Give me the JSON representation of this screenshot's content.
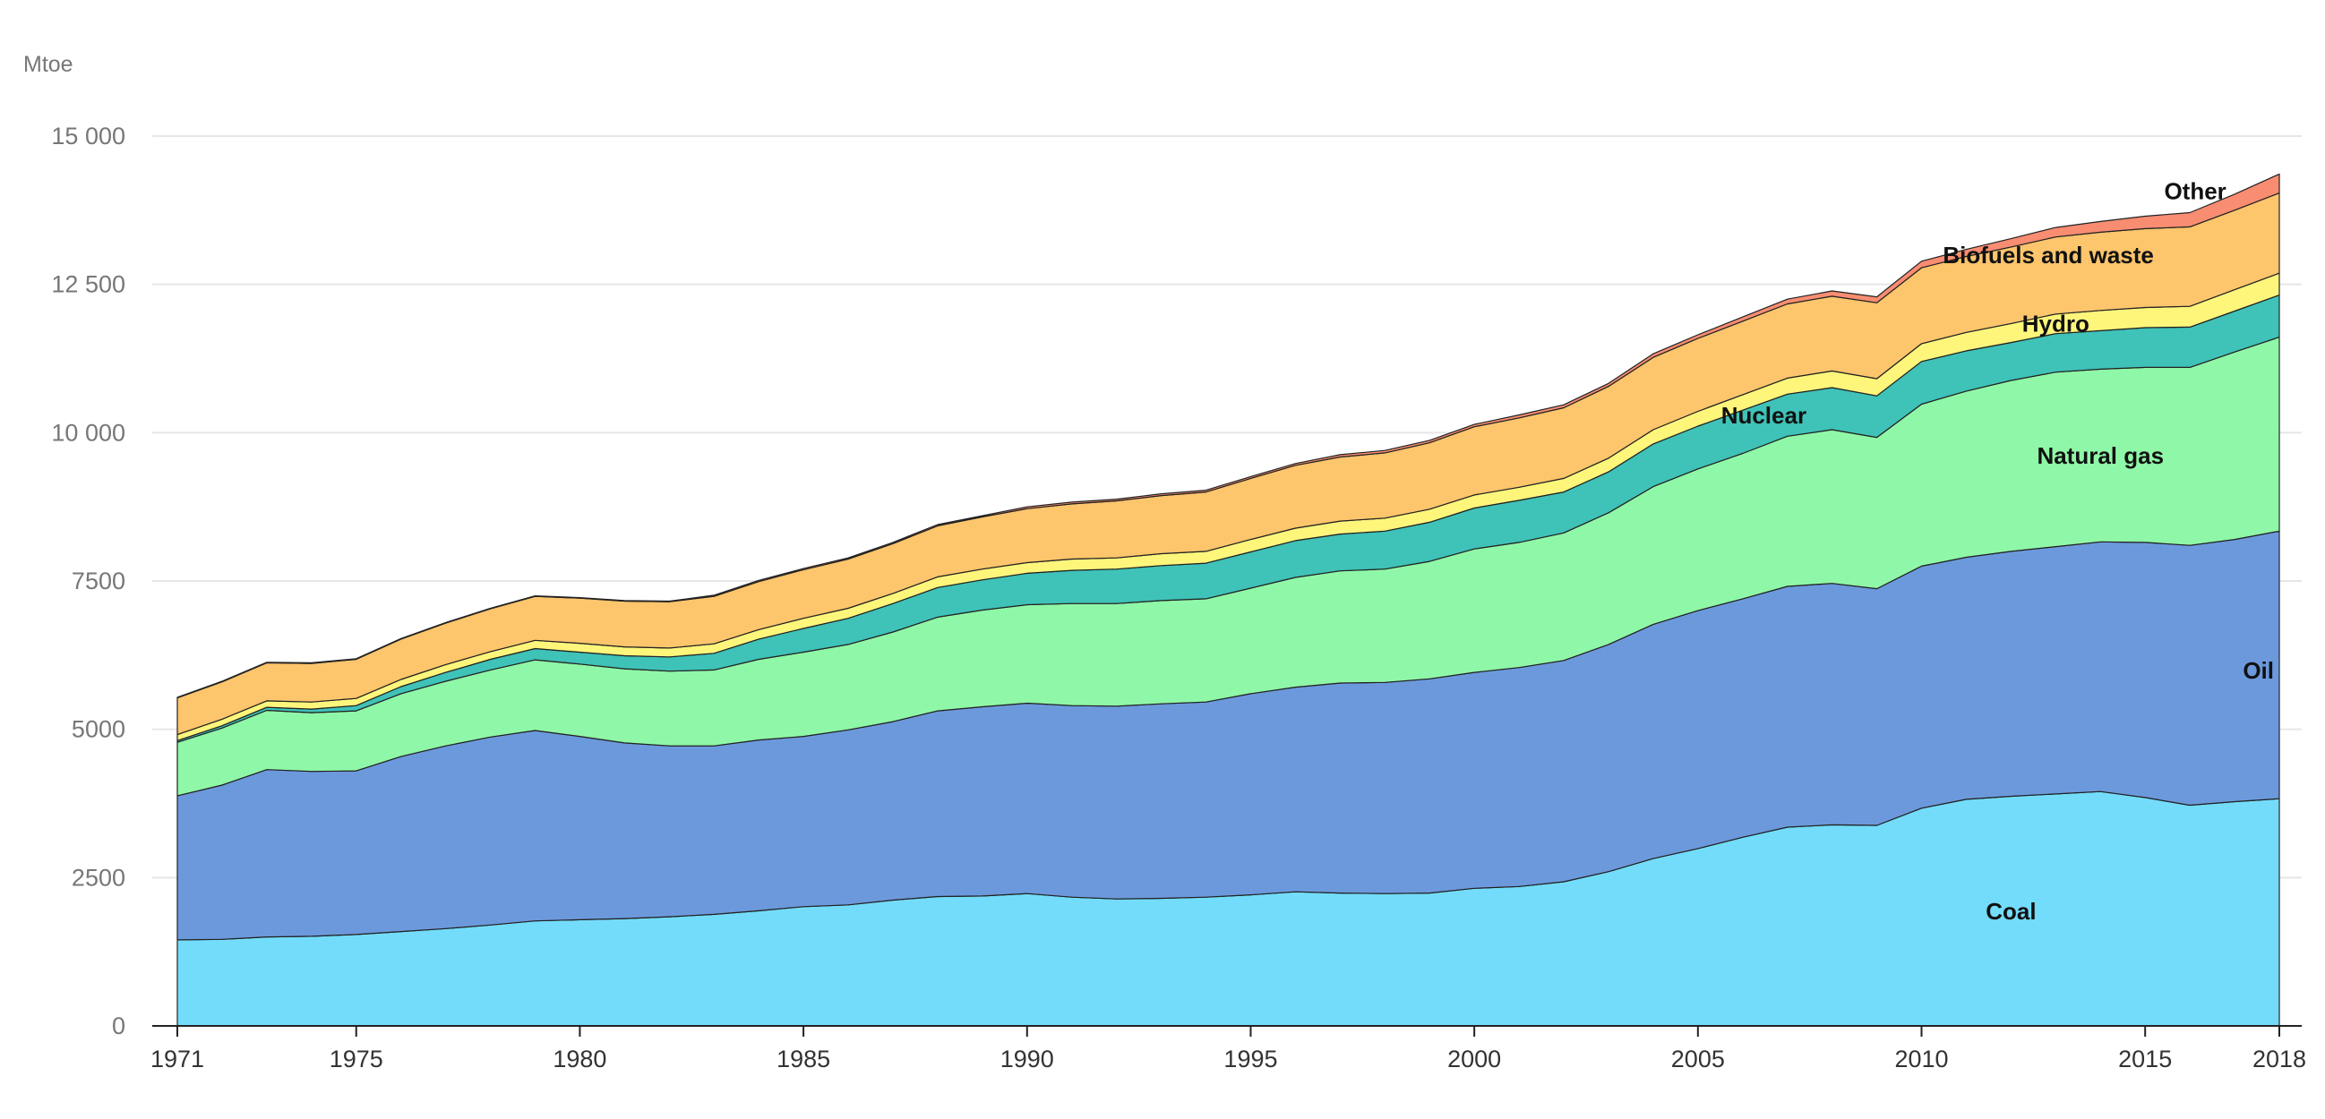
{
  "chart_data": {
    "type": "area",
    "stacked": true,
    "unit_label": "Mtoe",
    "x": [
      1971,
      1972,
      1973,
      1974,
      1975,
      1976,
      1977,
      1978,
      1979,
      1980,
      1981,
      1982,
      1983,
      1984,
      1985,
      1986,
      1987,
      1988,
      1989,
      1990,
      1991,
      1992,
      1993,
      1994,
      1995,
      1996,
      1997,
      1998,
      1999,
      2000,
      2001,
      2002,
      2003,
      2004,
      2005,
      2006,
      2007,
      2008,
      2009,
      2010,
      2011,
      2012,
      2013,
      2014,
      2015,
      2016,
      2017,
      2018
    ],
    "x_ticks": [
      1971,
      1975,
      1980,
      1985,
      1990,
      1995,
      2000,
      2005,
      2010,
      2015,
      2018
    ],
    "y_ticks": [
      0,
      2500,
      5000,
      7500,
      10000,
      12500,
      15000
    ],
    "y_tick_labels": [
      "0",
      "2500",
      "5000",
      "7500",
      "10 000",
      "12 500",
      "15 000"
    ],
    "xlim": [
      1971,
      2018
    ],
    "ylim": [
      0,
      15000
    ],
    "grid": true,
    "legend": "inline labels",
    "series": [
      {
        "name": "Coal",
        "color": "#73dcfb",
        "values": [
          1450,
          1460,
          1500,
          1510,
          1540,
          1590,
          1640,
          1700,
          1770,
          1790,
          1810,
          1840,
          1880,
          1940,
          2010,
          2040,
          2120,
          2180,
          2190,
          2230,
          2170,
          2140,
          2150,
          2170,
          2210,
          2260,
          2240,
          2230,
          2240,
          2320,
          2350,
          2430,
          2600,
          2820,
          2990,
          3180,
          3350,
          3390,
          3380,
          3670,
          3820,
          3870,
          3910,
          3950,
          3850,
          3720,
          3780,
          3830
        ]
      },
      {
        "name": "Oil",
        "color": "#6c99dc",
        "values": [
          2430,
          2600,
          2820,
          2780,
          2760,
          2950,
          3080,
          3170,
          3210,
          3090,
          2960,
          2880,
          2840,
          2880,
          2870,
          2950,
          3010,
          3130,
          3190,
          3210,
          3230,
          3250,
          3280,
          3290,
          3390,
          3450,
          3540,
          3560,
          3610,
          3640,
          3690,
          3730,
          3830,
          3950,
          4010,
          4020,
          4060,
          4070,
          3990,
          4080,
          4080,
          4130,
          4170,
          4210,
          4300,
          4380,
          4420,
          4510
        ]
      },
      {
        "name": "Natural gas",
        "color": "#8ff8a8",
        "values": [
          900,
          960,
          1000,
          990,
          1010,
          1060,
          1090,
          1130,
          1190,
          1220,
          1250,
          1260,
          1280,
          1360,
          1420,
          1440,
          1510,
          1580,
          1630,
          1660,
          1720,
          1730,
          1740,
          1740,
          1780,
          1850,
          1890,
          1910,
          1980,
          2080,
          2110,
          2150,
          2220,
          2320,
          2390,
          2450,
          2530,
          2590,
          2550,
          2730,
          2800,
          2880,
          2940,
          2910,
          2950,
          3000,
          3160,
          3270
        ]
      },
      {
        "name": "Nuclear",
        "color": "#3fc2b7",
        "values": [
          30,
          40,
          50,
          60,
          90,
          120,
          150,
          180,
          190,
          200,
          220,
          240,
          280,
          340,
          400,
          440,
          480,
          500,
          510,
          530,
          560,
          580,
          590,
          600,
          610,
          620,
          620,
          640,
          660,
          690,
          710,
          690,
          690,
          720,
          720,
          730,
          710,
          710,
          700,
          720,
          680,
          640,
          650,
          650,
          670,
          680,
          690,
          710
        ]
      },
      {
        "name": "Hydro",
        "color": "#fdf67b",
        "values": [
          100,
          110,
          110,
          120,
          120,
          120,
          130,
          130,
          140,
          150,
          150,
          150,
          160,
          160,
          170,
          170,
          170,
          180,
          180,
          180,
          190,
          190,
          200,
          200,
          210,
          210,
          220,
          220,
          220,
          220,
          220,
          230,
          230,
          240,
          250,
          260,
          270,
          280,
          290,
          300,
          310,
          320,
          330,
          340,
          340,
          350,
          360,
          370
        ]
      },
      {
        "name": "Biofuels and waste",
        "color": "#fdc56c",
        "values": [
          620,
          630,
          640,
          650,
          660,
          680,
          700,
          720,
          740,
          760,
          770,
          780,
          800,
          810,
          820,
          830,
          840,
          860,
          880,
          910,
          930,
          960,
          980,
          1000,
          1030,
          1060,
          1080,
          1100,
          1120,
          1150,
          1170,
          1190,
          1210,
          1220,
          1230,
          1240,
          1250,
          1260,
          1280,
          1280,
          1280,
          1290,
          1300,
          1320,
          1330,
          1340,
          1340,
          1350
        ]
      },
      {
        "name": "Other",
        "color": "#f88d72",
        "values": [
          10,
          10,
          10,
          10,
          10,
          10,
          10,
          10,
          10,
          10,
          10,
          10,
          20,
          20,
          20,
          20,
          20,
          20,
          20,
          30,
          30,
          30,
          30,
          30,
          30,
          30,
          40,
          40,
          40,
          40,
          50,
          50,
          50,
          60,
          60,
          70,
          80,
          90,
          100,
          110,
          120,
          140,
          160,
          180,
          210,
          240,
          270,
          320
        ]
      }
    ],
    "annotations": [
      {
        "series": "Coal",
        "text": "Coal"
      },
      {
        "series": "Oil",
        "text": "Oil"
      },
      {
        "series": "Natural gas",
        "text": "Natural gas"
      },
      {
        "series": "Nuclear",
        "text": "Nuclear"
      },
      {
        "series": "Hydro",
        "text": "Hydro"
      },
      {
        "series": "Biofuels and waste",
        "text": "Biofuels and waste"
      },
      {
        "series": "Other",
        "text": "Other"
      }
    ]
  }
}
